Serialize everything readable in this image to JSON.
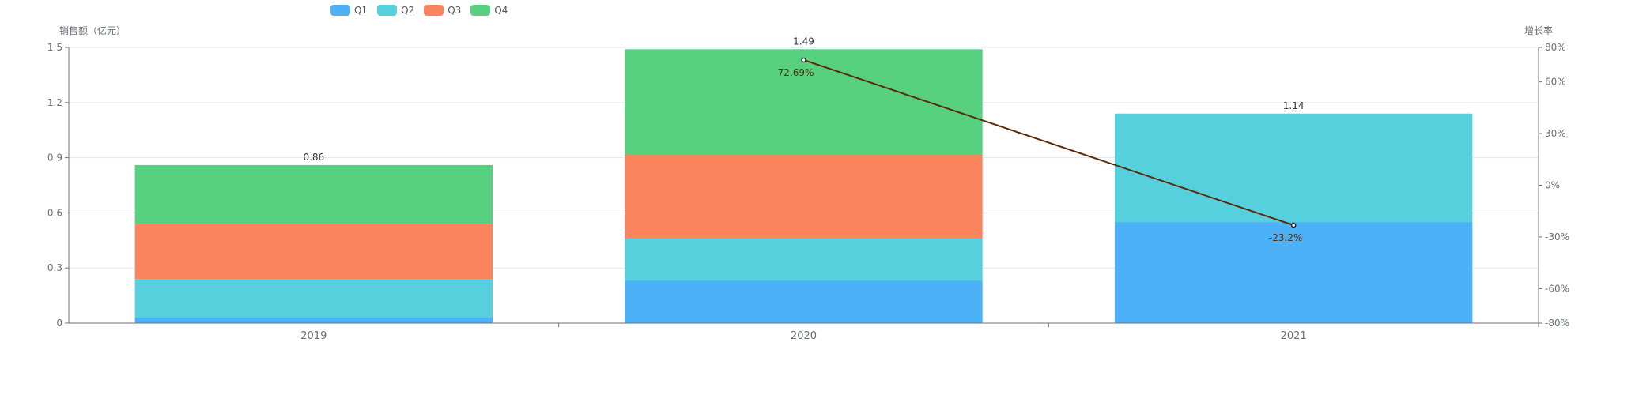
{
  "chart_data": {
    "type": "bar",
    "stacked": true,
    "categories": [
      "2019",
      "2020",
      "2021"
    ],
    "series": [
      {
        "name": "Q1",
        "color": "#4db1f7",
        "values": [
          0.03,
          0.23,
          0.55
        ]
      },
      {
        "name": "Q2",
        "color": "#57d0de",
        "values": [
          0.21,
          0.23,
          0.59
        ]
      },
      {
        "name": "Q3",
        "color": "#fa845d",
        "values": [
          0.3,
          0.46,
          null
        ]
      },
      {
        "name": "Q4",
        "color": "#57d180",
        "values": [
          0.32,
          0.57,
          null
        ]
      }
    ],
    "totals": [
      "0.86",
      "1.49",
      "1.14"
    ],
    "line_series": {
      "type": "line",
      "axis": "right",
      "color": "#5a2a0c",
      "points": [
        {
          "x": "2020",
          "y": 72.69,
          "label": "72.69%"
        },
        {
          "x": "2021",
          "y": -23.2,
          "label": "-23.2%"
        }
      ]
    },
    "ylabel": "销售额（亿元）",
    "ylim": [
      0,
      1.5
    ],
    "yticks": [
      "0",
      "0.3",
      "0.6",
      "0.9",
      "1.2",
      "1.5"
    ],
    "y2label": "增长率",
    "y2lim": [
      -80,
      80
    ],
    "y2ticks": [
      -80,
      -60,
      -30,
      0,
      30,
      60,
      80
    ],
    "y2tick_labels": [
      "-80%",
      "-60%",
      "-30%",
      "0%",
      "30%",
      "60%",
      "80%"
    ],
    "grid": true,
    "legend_position": "top"
  }
}
